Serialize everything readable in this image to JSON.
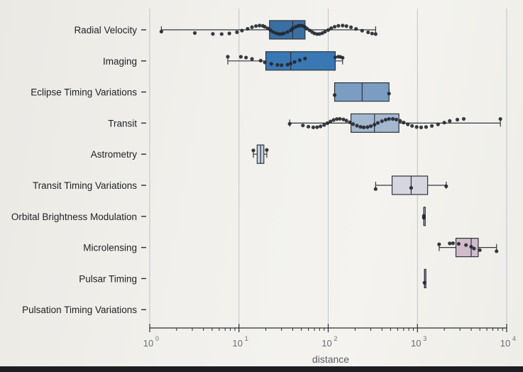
{
  "chart_data": {
    "type": "box",
    "orientation": "horizontal",
    "xscale": "log",
    "xlim": [
      1,
      10000
    ],
    "xlabel": "distance",
    "ylabel": "",
    "grid": true,
    "x_ticks": [
      {
        "base": "10",
        "exp": "0",
        "value": 1
      },
      {
        "base": "10",
        "exp": "1",
        "value": 10
      },
      {
        "base": "10",
        "exp": "2",
        "value": 100
      },
      {
        "base": "10",
        "exp": "3",
        "value": 1000
      },
      {
        "base": "10",
        "exp": "4",
        "value": 10000
      }
    ],
    "categories": [
      "Radial Velocity",
      "Imaging",
      "Eclipse Timing Variations",
      "Transit",
      "Astrometry",
      "Transit Timing Variations",
      "Orbital Brightness Modulation",
      "Microlensing",
      "Pulsar Timing",
      "Pulsation Timing Variations"
    ],
    "boxes": [
      {
        "category": "Radial Velocity",
        "color": "#3a6fa3",
        "whisker_low": 1.35,
        "q1": 22,
        "median": 40,
        "q3": 55,
        "whisker_high": 340,
        "points": [
          1.35,
          3.2,
          5.1,
          6.4,
          7.8,
          9.5,
          10.8,
          12.5,
          14,
          15.5,
          17,
          18.5,
          19.5,
          21,
          22.5,
          24,
          26,
          28,
          30,
          32,
          35,
          38,
          40,
          43,
          46,
          49,
          52,
          55,
          58,
          62,
          66,
          70,
          75,
          80,
          86,
          92,
          100,
          108,
          118,
          130,
          145,
          160,
          180,
          205,
          240,
          280,
          310,
          340
        ]
      },
      {
        "category": "Imaging",
        "color": "#3a78b5",
        "whisker_low": 7.5,
        "q1": 20,
        "median": 38,
        "q3": 120,
        "whisker_high": 145,
        "points": [
          7.5,
          10.5,
          12,
          14,
          17.5,
          19.5,
          23,
          27,
          30,
          35,
          38,
          42,
          48,
          55,
          120,
          130,
          137,
          145
        ]
      },
      {
        "category": "Eclipse Timing Variations",
        "color": "#7b9dc2",
        "whisker_low": 118,
        "q1": 118,
        "median": 240,
        "q3": 480,
        "whisker_high": 480,
        "points": [
          118,
          480
        ]
      },
      {
        "category": "Transit",
        "color": "#a3b7cf",
        "whisker_low": 37,
        "q1": 180,
        "median": 330,
        "q3": 620,
        "whisker_high": 8500,
        "points": [
          37,
          52,
          60,
          68,
          75,
          82,
          90,
          98,
          106,
          115,
          125,
          135,
          148,
          160,
          175,
          190,
          210,
          230,
          250,
          275,
          300,
          330,
          360,
          400,
          440,
          480,
          530,
          580,
          640,
          700,
          780,
          870,
          980,
          1100,
          1250,
          1450,
          1700,
          2000,
          2300,
          2800,
          3300,
          8500
        ]
      },
      {
        "category": "Astrometry",
        "color": "#c7d1de",
        "whisker_low": 14.5,
        "q1": 16,
        "median": 17.5,
        "q3": 19,
        "whisker_high": 20.5,
        "points": [
          14.5,
          20.5
        ]
      },
      {
        "category": "Transit Timing Variations",
        "color": "#d6d6e0",
        "whisker_low": 340,
        "q1": 520,
        "median": 850,
        "q3": 1300,
        "whisker_high": 2100,
        "points": [
          340,
          850,
          2100
        ]
      },
      {
        "category": "Orbital Brightness Modulation",
        "color": "#d8d2de",
        "whisker_low": 1180,
        "q1": 1180,
        "median": 1180,
        "q3": 1180,
        "whisker_high": 1180,
        "points": [
          1180,
          1180
        ]
      },
      {
        "category": "Microlensing",
        "color": "#d1bccc",
        "whisker_low": 1750,
        "q1": 2700,
        "median": 4000,
        "q3": 4800,
        "whisker_high": 7700,
        "points": [
          1750,
          2300,
          2500,
          2900,
          3500,
          4000,
          4300,
          5000,
          7700
        ]
      },
      {
        "category": "Pulsar Timing",
        "color": "#c9b4c6",
        "whisker_low": 1200,
        "q1": 1200,
        "median": 1200,
        "q3": 1200,
        "whisker_high": 1200,
        "points": [
          1200
        ]
      },
      {
        "category": "Pulsation Timing Variations",
        "color": "#c2a9bf",
        "whisker_low": null,
        "q1": null,
        "median": null,
        "q3": null,
        "whisker_high": null,
        "points": []
      }
    ]
  }
}
